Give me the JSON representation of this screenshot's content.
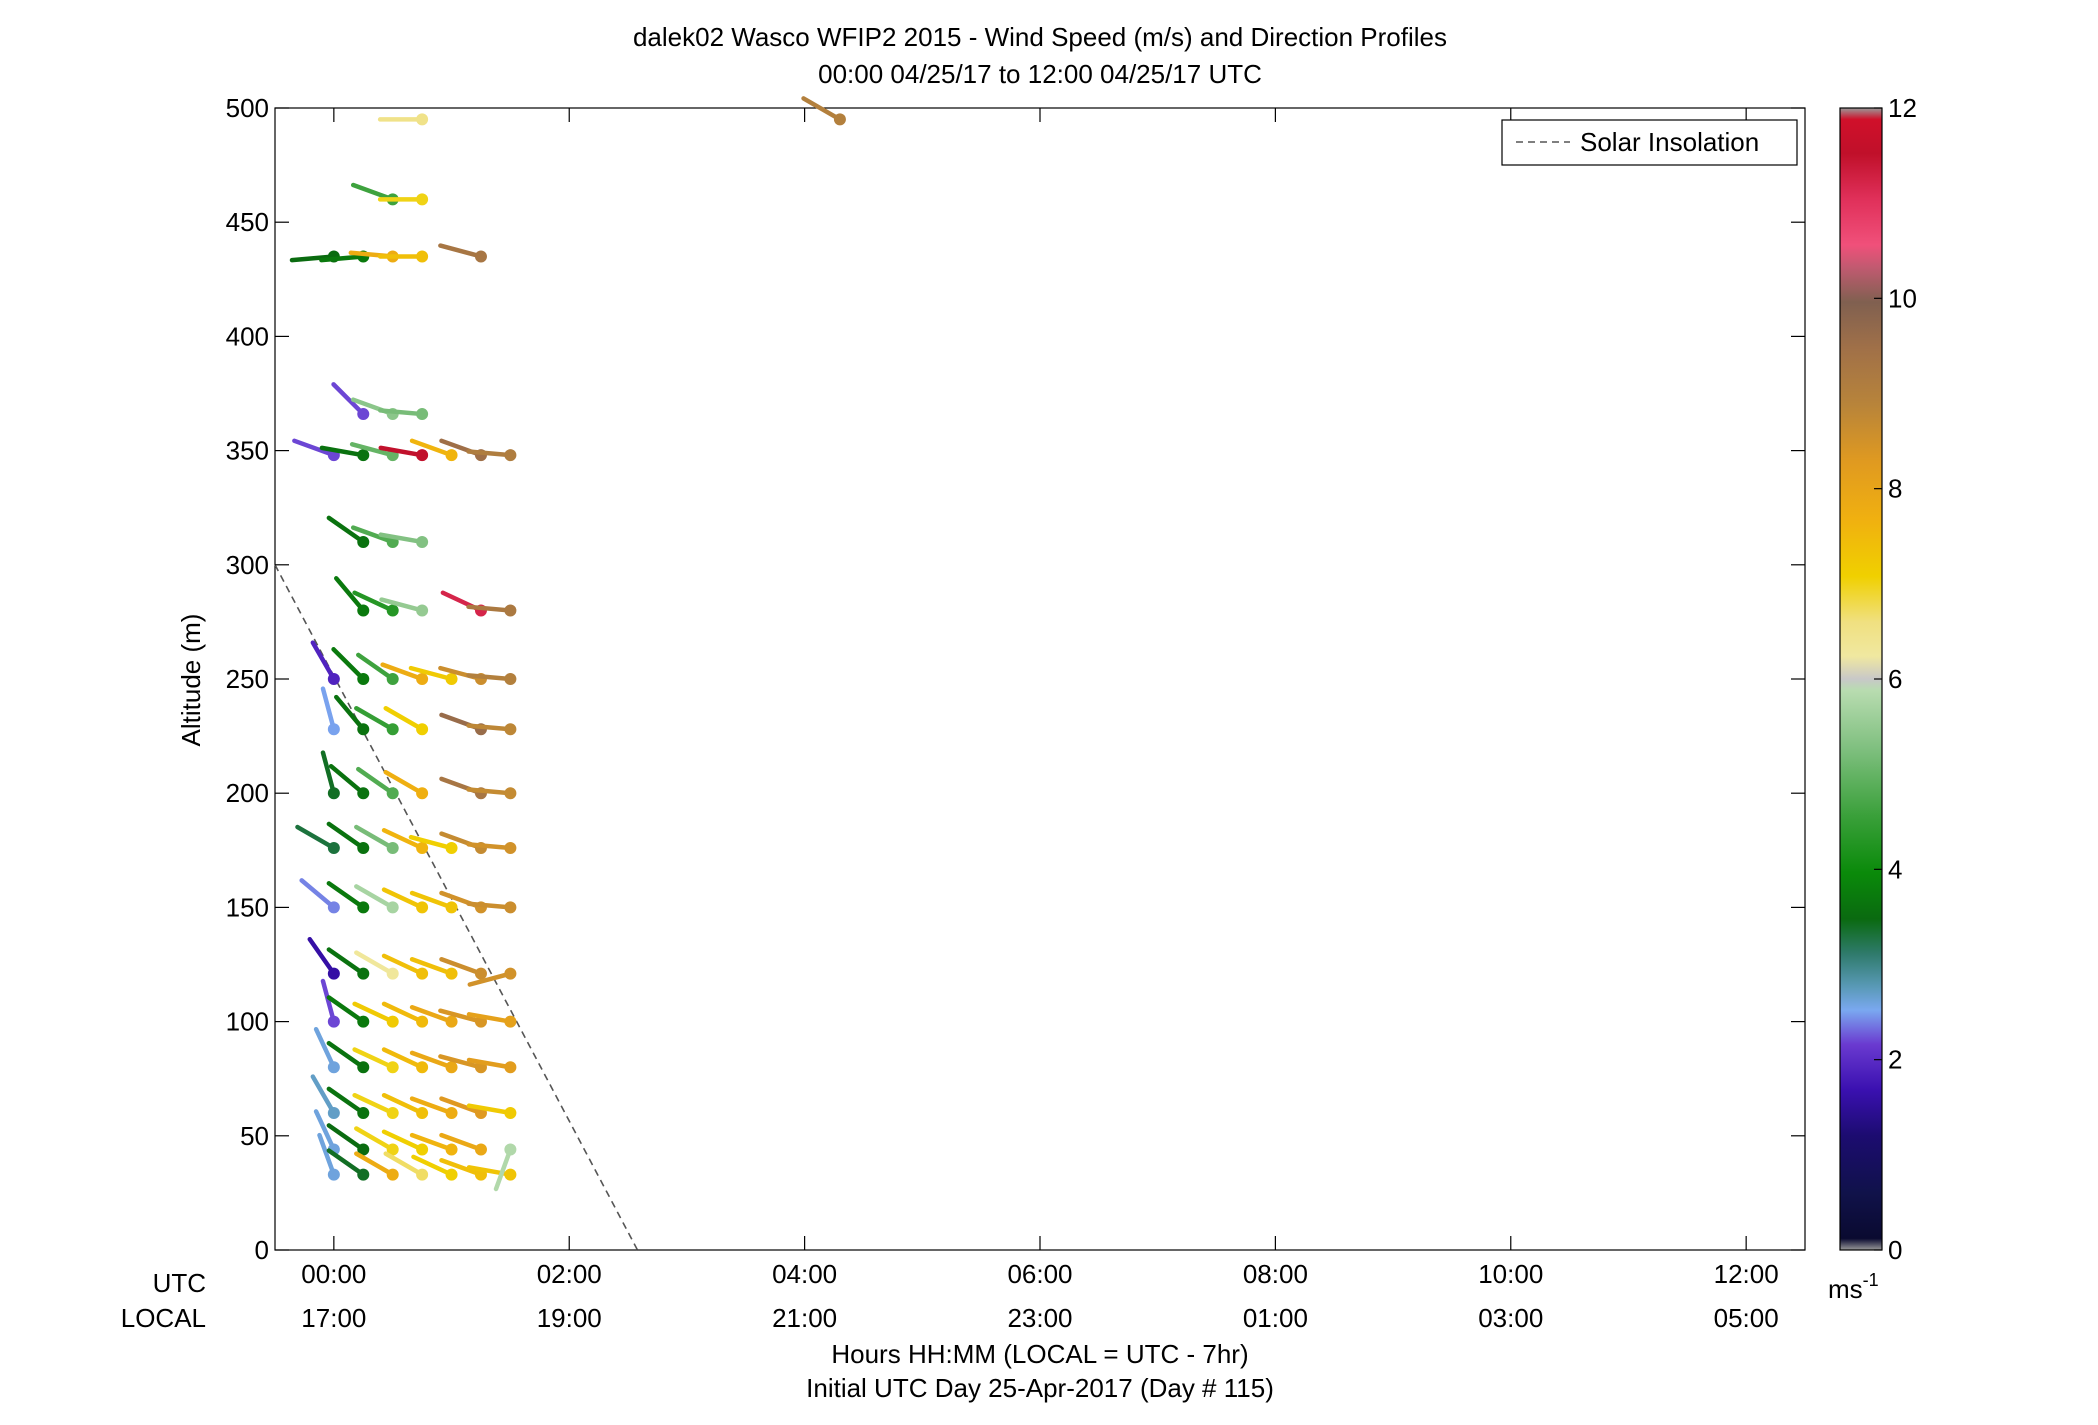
{
  "chart_data": {
    "type": "wind-barb-profile",
    "title": "dalek02 Wasco WFIP2 2015 - Wind Speed (m/s) and Direction Profiles",
    "subtitle": "00:00 04/25/17 to 12:00 04/25/17  UTC",
    "ylabel": "Altitude (m)",
    "xlabel": "Hours HH:MM  (LOCAL = UTC - 7hr)",
    "xlabel2": "Initial UTC Day 25-Apr-2017 (Day # 115)",
    "row_label_utc": "UTC",
    "row_label_local": "LOCAL",
    "xlim_hours": [
      -0.5,
      12.5
    ],
    "ylim": [
      0,
      500
    ],
    "y_ticks": [
      "0",
      "50",
      "100",
      "150",
      "200",
      "250",
      "300",
      "350",
      "400",
      "450",
      "500"
    ],
    "x_ticks": [
      {
        "hour": 0,
        "utc": "00:00",
        "local": "17:00"
      },
      {
        "hour": 2,
        "utc": "02:00",
        "local": "19:00"
      },
      {
        "hour": 4,
        "utc": "04:00",
        "local": "21:00"
      },
      {
        "hour": 6,
        "utc": "06:00",
        "local": "23:00"
      },
      {
        "hour": 8,
        "utc": "08:00",
        "local": "01:00"
      },
      {
        "hour": 10,
        "utc": "10:00",
        "local": "03:00"
      },
      {
        "hour": 12,
        "utc": "12:00",
        "local": "05:00"
      }
    ],
    "legend": {
      "label": "Solar Insolation",
      "placement": "top-right"
    },
    "solar_insolation_line": [
      [
        -0.5,
        300
      ],
      [
        2.58,
        0
      ]
    ],
    "colorbar": {
      "unit": "ms",
      "unit_exponent": "-1",
      "ticks": [
        "0",
        "2",
        "4",
        "6",
        "8",
        "10",
        "12"
      ],
      "range": [
        0,
        12
      ],
      "stops": [
        [
          0.0,
          "#999999"
        ],
        [
          0.01,
          "#0a0a30"
        ],
        [
          0.05,
          "#10124a"
        ],
        [
          0.1,
          "#1c0c70"
        ],
        [
          0.14,
          "#3a10b0"
        ],
        [
          0.18,
          "#6a3ad0"
        ],
        [
          0.21,
          "#7aa8f0"
        ],
        [
          0.23,
          "#5a9ab8"
        ],
        [
          0.26,
          "#2e7a6a"
        ],
        [
          0.29,
          "#0a6a10"
        ],
        [
          0.33,
          "#0a8a0a"
        ],
        [
          0.38,
          "#3aa03a"
        ],
        [
          0.44,
          "#80c080"
        ],
        [
          0.49,
          "#b8dcb0"
        ],
        [
          0.5,
          "#c8c8c8"
        ],
        [
          0.52,
          "#f0e8a0"
        ],
        [
          0.55,
          "#f0e080"
        ],
        [
          0.59,
          "#f0d000"
        ],
        [
          0.64,
          "#f0b010"
        ],
        [
          0.69,
          "#e09a20"
        ],
        [
          0.74,
          "#b8843a"
        ],
        [
          0.79,
          "#a07048"
        ],
        [
          0.83,
          "#806050"
        ],
        [
          0.86,
          "#c05a70"
        ],
        [
          0.88,
          "#f0507a"
        ],
        [
          0.92,
          "#e0305a"
        ],
        [
          0.96,
          "#c0102a"
        ],
        [
          0.99,
          "#d0102a"
        ],
        [
          1.0,
          "#999999"
        ]
      ]
    },
    "profiles": [
      {
        "time": 0.0,
        "obs": [
          {
            "alt": 33,
            "speed": 2.6,
            "dir": 340
          },
          {
            "alt": 44,
            "speed": 2.6,
            "dir": 335
          },
          {
            "alt": 60,
            "speed": 2.7,
            "dir": 330
          },
          {
            "alt": 80,
            "speed": 2.6,
            "dir": 335
          },
          {
            "alt": 100,
            "speed": 2.2,
            "dir": 345
          },
          {
            "alt": 121,
            "speed": 1.6,
            "dir": 325
          },
          {
            "alt": 150,
            "speed": 2.4,
            "dir": 310
          },
          {
            "alt": 176,
            "speed": 3.3,
            "dir": 300
          },
          {
            "alt": 200,
            "speed": 3.4,
            "dir": 345
          },
          {
            "alt": 228,
            "speed": 2.5,
            "dir": 345
          },
          {
            "alt": 250,
            "speed": 1.9,
            "dir": 330
          },
          {
            "alt": 348,
            "speed": 2.2,
            "dir": 290
          },
          {
            "alt": 435,
            "speed": 3.5,
            "dir": 265
          }
        ]
      },
      {
        "time": 0.25,
        "obs": [
          {
            "alt": 33,
            "speed": 3.4,
            "dir": 305
          },
          {
            "alt": 44,
            "speed": 3.5,
            "dir": 305
          },
          {
            "alt": 60,
            "speed": 3.6,
            "dir": 305
          },
          {
            "alt": 80,
            "speed": 3.6,
            "dir": 305
          },
          {
            "alt": 100,
            "speed": 3.7,
            "dir": 305
          },
          {
            "alt": 121,
            "speed": 3.6,
            "dir": 305
          },
          {
            "alt": 150,
            "speed": 3.7,
            "dir": 305
          },
          {
            "alt": 176,
            "speed": 3.6,
            "dir": 305
          },
          {
            "alt": 200,
            "speed": 3.6,
            "dir": 310
          },
          {
            "alt": 228,
            "speed": 3.6,
            "dir": 320
          },
          {
            "alt": 250,
            "speed": 3.7,
            "dir": 315
          },
          {
            "alt": 280,
            "speed": 3.7,
            "dir": 320
          },
          {
            "alt": 310,
            "speed": 3.6,
            "dir": 305
          },
          {
            "alt": 348,
            "speed": 3.6,
            "dir": 280
          },
          {
            "alt": 366,
            "speed": 2.2,
            "dir": 315
          },
          {
            "alt": 435,
            "speed": 3.7,
            "dir": 265
          }
        ]
      },
      {
        "time": 0.5,
        "obs": [
          {
            "alt": 33,
            "speed": 7.8,
            "dir": 300
          },
          {
            "alt": 44,
            "speed": 7.0,
            "dir": 300
          },
          {
            "alt": 60,
            "speed": 7.0,
            "dir": 295
          },
          {
            "alt": 80,
            "speed": 7.0,
            "dir": 295
          },
          {
            "alt": 100,
            "speed": 7.2,
            "dir": 295
          },
          {
            "alt": 121,
            "speed": 6.3,
            "dir": 300
          },
          {
            "alt": 150,
            "speed": 5.7,
            "dir": 300
          },
          {
            "alt": 176,
            "speed": 5.2,
            "dir": 300
          },
          {
            "alt": 200,
            "speed": 4.8,
            "dir": 305
          },
          {
            "alt": 228,
            "speed": 4.5,
            "dir": 300
          },
          {
            "alt": 250,
            "speed": 4.6,
            "dir": 305
          },
          {
            "alt": 280,
            "speed": 4.3,
            "dir": 295
          },
          {
            "alt": 310,
            "speed": 4.8,
            "dir": 290
          },
          {
            "alt": 348,
            "speed": 5.0,
            "dir": 285
          },
          {
            "alt": 366,
            "speed": 5.4,
            "dir": 290
          },
          {
            "alt": 435,
            "speed": 7.8,
            "dir": 275
          },
          {
            "alt": 460,
            "speed": 4.6,
            "dir": 290
          }
        ]
      },
      {
        "time": 0.75,
        "obs": [
          {
            "alt": 33,
            "speed": 6.7,
            "dir": 300
          },
          {
            "alt": 44,
            "speed": 7.1,
            "dir": 295
          },
          {
            "alt": 60,
            "speed": 7.4,
            "dir": 295
          },
          {
            "alt": 80,
            "speed": 7.5,
            "dir": 295
          },
          {
            "alt": 100,
            "speed": 7.5,
            "dir": 295
          },
          {
            "alt": 121,
            "speed": 7.4,
            "dir": 295
          },
          {
            "alt": 150,
            "speed": 7.3,
            "dir": 295
          },
          {
            "alt": 176,
            "speed": 7.6,
            "dir": 295
          },
          {
            "alt": 200,
            "speed": 7.7,
            "dir": 300
          },
          {
            "alt": 228,
            "speed": 7.1,
            "dir": 300
          },
          {
            "alt": 250,
            "speed": 7.8,
            "dir": 290
          },
          {
            "alt": 280,
            "speed": 5.5,
            "dir": 285
          },
          {
            "alt": 310,
            "speed": 5.3,
            "dir": 280
          },
          {
            "alt": 348,
            "speed": 11.5,
            "dir": 280
          },
          {
            "alt": 366,
            "speed": 5.2,
            "dir": 275
          },
          {
            "alt": 435,
            "speed": 7.4,
            "dir": 270
          },
          {
            "alt": 460,
            "speed": 7.0,
            "dir": 270
          },
          {
            "alt": 495,
            "speed": 6.5,
            "dir": 270
          }
        ]
      },
      {
        "time": 1.0,
        "obs": [
          {
            "alt": 33,
            "speed": 7.1,
            "dir": 295
          },
          {
            "alt": 44,
            "speed": 7.6,
            "dir": 290
          },
          {
            "alt": 60,
            "speed": 7.8,
            "dir": 290
          },
          {
            "alt": 80,
            "speed": 7.9,
            "dir": 290
          },
          {
            "alt": 100,
            "speed": 7.9,
            "dir": 290
          },
          {
            "alt": 121,
            "speed": 7.4,
            "dir": 290
          },
          {
            "alt": 150,
            "speed": 7.3,
            "dir": 290
          },
          {
            "alt": 176,
            "speed": 7.1,
            "dir": 285
          },
          {
            "alt": 250,
            "speed": 7.2,
            "dir": 285
          },
          {
            "alt": 348,
            "speed": 7.6,
            "dir": 290
          }
        ]
      },
      {
        "time": 1.25,
        "obs": [
          {
            "alt": 33,
            "speed": 7.4,
            "dir": 290
          },
          {
            "alt": 44,
            "speed": 7.9,
            "dir": 290
          },
          {
            "alt": 60,
            "speed": 8.3,
            "dir": 290
          },
          {
            "alt": 80,
            "speed": 8.4,
            "dir": 285
          },
          {
            "alt": 100,
            "speed": 8.4,
            "dir": 285
          },
          {
            "alt": 121,
            "speed": 8.6,
            "dir": 290
          },
          {
            "alt": 150,
            "speed": 8.5,
            "dir": 290
          },
          {
            "alt": 176,
            "speed": 8.7,
            "dir": 290
          },
          {
            "alt": 200,
            "speed": 9.3,
            "dir": 290
          },
          {
            "alt": 228,
            "speed": 9.6,
            "dir": 290
          },
          {
            "alt": 250,
            "speed": 8.6,
            "dir": 285
          },
          {
            "alt": 280,
            "speed": 11.2,
            "dir": 295
          },
          {
            "alt": 348,
            "speed": 9.5,
            "dir": 290
          },
          {
            "alt": 435,
            "speed": 9.3,
            "dir": 285
          }
        ]
      },
      {
        "time": 1.5,
        "obs": [
          {
            "alt": 33,
            "speed": 7.3,
            "dir": 280
          },
          {
            "alt": 44,
            "speed": 5.8,
            "dir": 200
          },
          {
            "alt": 60,
            "speed": 7.2,
            "dir": 280
          },
          {
            "alt": 80,
            "speed": 8.2,
            "dir": 280
          },
          {
            "alt": 100,
            "speed": 8.1,
            "dir": 280
          },
          {
            "alt": 121,
            "speed": 8.5,
            "dir": 255
          },
          {
            "alt": 150,
            "speed": 8.6,
            "dir": 275
          },
          {
            "alt": 176,
            "speed": 8.5,
            "dir": 275
          },
          {
            "alt": 200,
            "speed": 8.7,
            "dir": 275
          },
          {
            "alt": 228,
            "speed": 8.8,
            "dir": 275
          },
          {
            "alt": 250,
            "speed": 9.0,
            "dir": 275
          },
          {
            "alt": 280,
            "speed": 9.2,
            "dir": 275
          },
          {
            "alt": 348,
            "speed": 9.1,
            "dir": 275
          }
        ]
      },
      {
        "time": 4.3,
        "obs": [
          {
            "alt": 495,
            "speed": 9.0,
            "dir": 300
          }
        ]
      }
    ]
  }
}
